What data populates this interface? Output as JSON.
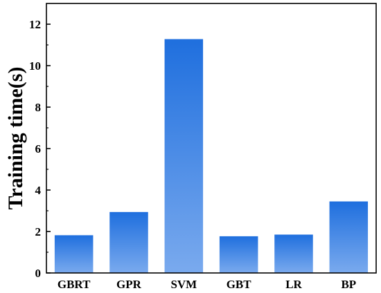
{
  "chart_data": {
    "type": "bar",
    "title": "",
    "xlabel": "",
    "ylabel": "Training time(s)",
    "categories": [
      "GBRT",
      "GPR",
      "SVM",
      "GBT",
      "LR",
      "BP"
    ],
    "values": [
      1.82,
      2.94,
      11.28,
      1.77,
      1.85,
      3.45
    ],
    "ylim": [
      0,
      13
    ],
    "yticks": [
      "0",
      "2",
      "4",
      "6",
      "8",
      "10",
      "12"
    ],
    "grid": false,
    "legend": "none",
    "bar_color_top": "#1f6fde",
    "bar_color_bottom": "#7aaaee"
  }
}
